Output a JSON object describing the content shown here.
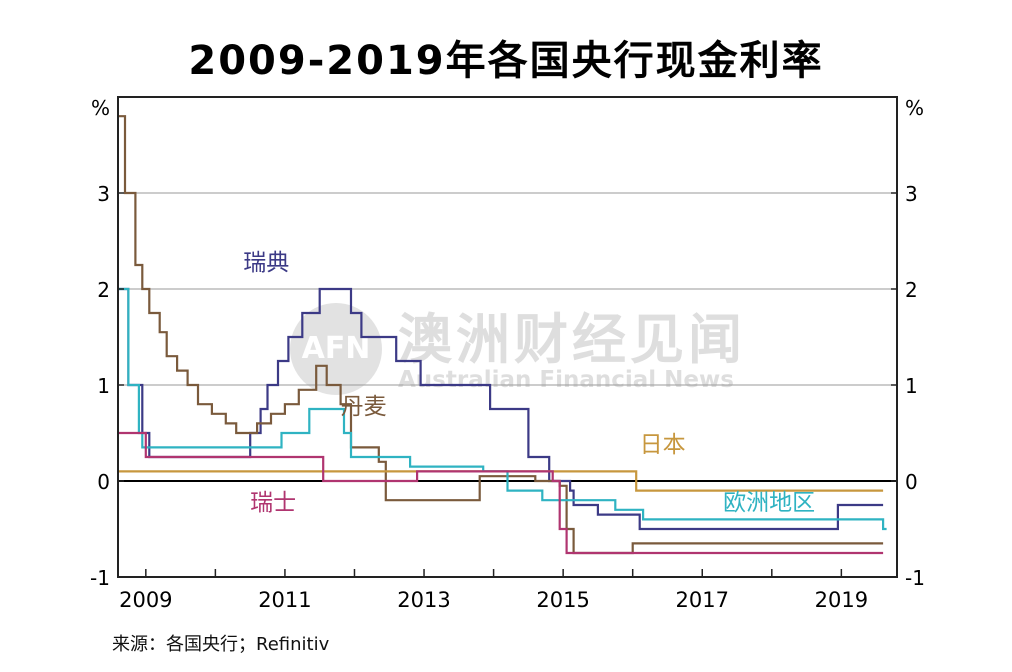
{
  "title": "2009-2019年各国央行现金利率",
  "source": "来源：各国央行；Refinitiv",
  "watermark": {
    "logo": "AFN",
    "cn": "澳洲财经见闻",
    "en": "Australian Financial News"
  },
  "chart_data": {
    "type": "line",
    "title": "2009-2019年各国央行现金利率",
    "ylabel_left": "%",
    "ylabel_right": "%",
    "xlim": [
      2008.6,
      2019.8
    ],
    "ylim": [
      -1,
      4
    ],
    "y_ticks": [
      -1,
      0,
      1,
      2,
      3
    ],
    "x_ticks": [
      2009,
      2011,
      2013,
      2015,
      2017,
      2019
    ],
    "grid": "horizontal",
    "series": [
      {
        "name": "瑞典",
        "color": "#3c3a86",
        "label_pos": [
          2010.4,
          2.2
        ],
        "points": [
          [
            2008.6,
            2.0
          ],
          [
            2008.75,
            2.0
          ],
          [
            2008.75,
            1.0
          ],
          [
            2008.95,
            1.0
          ],
          [
            2008.95,
            0.5
          ],
          [
            2009.05,
            0.5
          ],
          [
            2009.05,
            0.25
          ],
          [
            2010.5,
            0.25
          ],
          [
            2010.5,
            0.5
          ],
          [
            2010.65,
            0.5
          ],
          [
            2010.65,
            0.75
          ],
          [
            2010.75,
            0.75
          ],
          [
            2010.75,
            1.0
          ],
          [
            2010.9,
            1.0
          ],
          [
            2010.9,
            1.25
          ],
          [
            2011.05,
            1.25
          ],
          [
            2011.05,
            1.5
          ],
          [
            2011.25,
            1.5
          ],
          [
            2011.25,
            1.75
          ],
          [
            2011.5,
            1.75
          ],
          [
            2011.5,
            2.0
          ],
          [
            2011.95,
            2.0
          ],
          [
            2011.95,
            1.75
          ],
          [
            2012.1,
            1.75
          ],
          [
            2012.1,
            1.5
          ],
          [
            2012.6,
            1.5
          ],
          [
            2012.6,
            1.25
          ],
          [
            2012.95,
            1.25
          ],
          [
            2012.95,
            1.0
          ],
          [
            2013.95,
            1.0
          ],
          [
            2013.95,
            0.75
          ],
          [
            2014.5,
            0.75
          ],
          [
            2014.5,
            0.25
          ],
          [
            2014.8,
            0.25
          ],
          [
            2014.8,
            0.0
          ],
          [
            2015.1,
            0.0
          ],
          [
            2015.1,
            -0.1
          ],
          [
            2015.15,
            -0.1
          ],
          [
            2015.15,
            -0.25
          ],
          [
            2015.5,
            -0.25
          ],
          [
            2015.5,
            -0.35
          ],
          [
            2016.1,
            -0.35
          ],
          [
            2016.1,
            -0.5
          ],
          [
            2018.95,
            -0.5
          ],
          [
            2018.95,
            -0.25
          ],
          [
            2019.6,
            -0.25
          ]
        ]
      },
      {
        "name": "丹麦",
        "color": "#7a5a3c",
        "label_pos": [
          2011.8,
          0.7
        ],
        "points": [
          [
            2008.6,
            3.8
          ],
          [
            2008.7,
            3.8
          ],
          [
            2008.7,
            3.0
          ],
          [
            2008.85,
            3.0
          ],
          [
            2008.85,
            2.25
          ],
          [
            2008.95,
            2.25
          ],
          [
            2008.95,
            2.0
          ],
          [
            2009.05,
            2.0
          ],
          [
            2009.05,
            1.75
          ],
          [
            2009.2,
            1.75
          ],
          [
            2009.2,
            1.55
          ],
          [
            2009.3,
            1.55
          ],
          [
            2009.3,
            1.3
          ],
          [
            2009.45,
            1.3
          ],
          [
            2009.45,
            1.15
          ],
          [
            2009.6,
            1.15
          ],
          [
            2009.6,
            1.0
          ],
          [
            2009.75,
            1.0
          ],
          [
            2009.75,
            0.8
          ],
          [
            2009.95,
            0.8
          ],
          [
            2009.95,
            0.7
          ],
          [
            2010.15,
            0.7
          ],
          [
            2010.15,
            0.6
          ],
          [
            2010.3,
            0.6
          ],
          [
            2010.3,
            0.5
          ],
          [
            2010.6,
            0.5
          ],
          [
            2010.6,
            0.6
          ],
          [
            2010.8,
            0.6
          ],
          [
            2010.8,
            0.7
          ],
          [
            2011.0,
            0.7
          ],
          [
            2011.0,
            0.8
          ],
          [
            2011.2,
            0.8
          ],
          [
            2011.2,
            0.95
          ],
          [
            2011.45,
            0.95
          ],
          [
            2011.45,
            1.2
          ],
          [
            2011.6,
            1.2
          ],
          [
            2011.6,
            1.0
          ],
          [
            2011.8,
            1.0
          ],
          [
            2011.8,
            0.8
          ],
          [
            2011.95,
            0.8
          ],
          [
            2011.95,
            0.35
          ],
          [
            2012.35,
            0.35
          ],
          [
            2012.35,
            0.2
          ],
          [
            2012.45,
            0.2
          ],
          [
            2012.45,
            -0.2
          ],
          [
            2013.8,
            -0.2
          ],
          [
            2013.8,
            0.05
          ],
          [
            2014.6,
            0.05
          ],
          [
            2014.6,
            0.0
          ],
          [
            2014.95,
            0.0
          ],
          [
            2014.95,
            -0.05
          ],
          [
            2015.05,
            -0.05
          ],
          [
            2015.05,
            -0.5
          ],
          [
            2015.15,
            -0.5
          ],
          [
            2015.15,
            -0.75
          ],
          [
            2016.0,
            -0.75
          ],
          [
            2016.0,
            -0.65
          ],
          [
            2019.6,
            -0.65
          ]
        ]
      },
      {
        "name": "日本",
        "color": "#c7973e",
        "label_pos": [
          2016.1,
          0.3
        ],
        "points": [
          [
            2008.6,
            0.1
          ],
          [
            2016.05,
            0.1
          ],
          [
            2016.05,
            -0.1
          ],
          [
            2019.6,
            -0.1
          ]
        ]
      },
      {
        "name": "欧洲地区",
        "color": "#2fb3c2",
        "label_pos": [
          2017.3,
          -0.3
        ],
        "points": [
          [
            2008.6,
            2.0
          ],
          [
            2008.75,
            2.0
          ],
          [
            2008.75,
            1.0
          ],
          [
            2008.9,
            1.0
          ],
          [
            2008.9,
            0.5
          ],
          [
            2008.95,
            0.5
          ],
          [
            2008.95,
            0.35
          ],
          [
            2010.95,
            0.35
          ],
          [
            2010.95,
            0.5
          ],
          [
            2011.35,
            0.5
          ],
          [
            2011.35,
            0.75
          ],
          [
            2011.85,
            0.75
          ],
          [
            2011.85,
            0.5
          ],
          [
            2011.95,
            0.5
          ],
          [
            2011.95,
            0.25
          ],
          [
            2012.8,
            0.25
          ],
          [
            2012.8,
            0.15
          ],
          [
            2013.85,
            0.15
          ],
          [
            2013.85,
            0.1
          ],
          [
            2014.2,
            0.1
          ],
          [
            2014.2,
            -0.1
          ],
          [
            2014.7,
            -0.1
          ],
          [
            2014.7,
            -0.2
          ],
          [
            2015.75,
            -0.2
          ],
          [
            2015.75,
            -0.3
          ],
          [
            2016.15,
            -0.3
          ],
          [
            2016.15,
            -0.4
          ],
          [
            2019.6,
            -0.4
          ],
          [
            2019.6,
            -0.5
          ],
          [
            2019.65,
            -0.5
          ]
        ]
      },
      {
        "name": "瑞士",
        "color": "#b03570",
        "label_pos": [
          2010.5,
          -0.3
        ],
        "points": [
          [
            2008.6,
            0.5
          ],
          [
            2009.0,
            0.5
          ],
          [
            2009.0,
            0.25
          ],
          [
            2011.55,
            0.25
          ],
          [
            2011.55,
            0.0
          ],
          [
            2012.9,
            0.0
          ],
          [
            2012.9,
            0.1
          ],
          [
            2014.85,
            0.1
          ],
          [
            2014.85,
            0.0
          ],
          [
            2014.95,
            0.0
          ],
          [
            2014.95,
            -0.5
          ],
          [
            2015.05,
            -0.5
          ],
          [
            2015.05,
            -0.75
          ],
          [
            2019.6,
            -0.75
          ]
        ]
      }
    ]
  }
}
